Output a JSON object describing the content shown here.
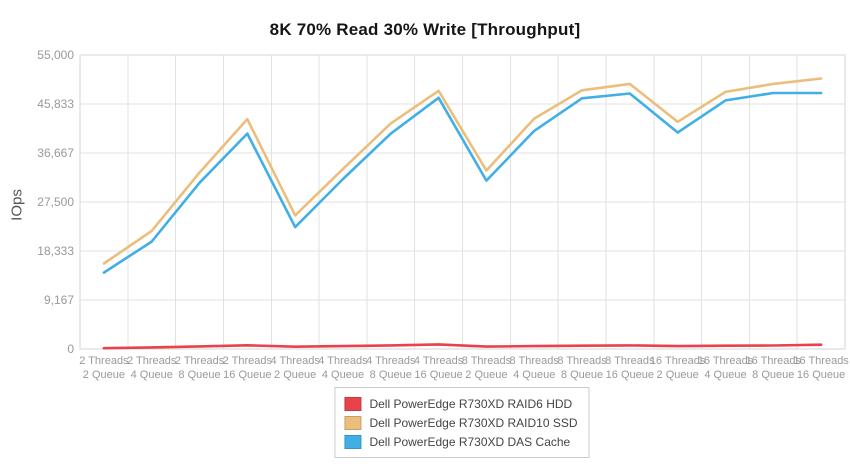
{
  "page": {
    "background": "#ffffff"
  },
  "chart_data": {
    "type": "line",
    "title": "8K 70% Read 30% Write [Throughput]",
    "xlabel": "",
    "ylabel": "IOps",
    "ylim": [
      0,
      55000
    ],
    "y_ticks": [
      0,
      9167,
      18333,
      27500,
      36667,
      45833,
      55000
    ],
    "y_tick_labels": [
      "0",
      "9,167",
      "18,333",
      "27,500",
      "36,667",
      "45,833",
      "55,000"
    ],
    "grid": true,
    "legend_position": "bottom-center",
    "categories": [
      [
        "2 Threads",
        "2 Queue"
      ],
      [
        "2 Threads",
        "4 Queue"
      ],
      [
        "2 Threads",
        "8 Queue"
      ],
      [
        "2 Threads",
        "16 Queue"
      ],
      [
        "4 Threads",
        "2 Queue"
      ],
      [
        "4 Threads",
        "4 Queue"
      ],
      [
        "4 Threads",
        "8 Queue"
      ],
      [
        "4 Threads",
        "16 Queue"
      ],
      [
        "8 Threads",
        "2 Queue"
      ],
      [
        "8 Threads",
        "4 Queue"
      ],
      [
        "8 Threads",
        "8 Queue"
      ],
      [
        "8 Threads",
        "16 Queue"
      ],
      [
        "16 Threads",
        "2 Queue"
      ],
      [
        "16 Threads",
        "4 Queue"
      ],
      [
        "16 Threads",
        "8 Queue"
      ],
      [
        "16 Threads",
        "16 Queue"
      ]
    ],
    "series": [
      {
        "name": "Dell PowerEdge R730XD RAID6 HDD",
        "color": "#e8434b",
        "values": [
          150,
          300,
          480,
          700,
          430,
          550,
          680,
          860,
          450,
          550,
          620,
          680,
          550,
          610,
          660,
          800
        ]
      },
      {
        "name": "Dell PowerEdge R730XD RAID10 SSD",
        "color": "#ecbe7d",
        "values": [
          16000,
          22100,
          33000,
          43000,
          25000,
          33700,
          42200,
          48300,
          33400,
          43100,
          48400,
          49600,
          42500,
          48100,
          49600,
          50600
        ]
      },
      {
        "name": "Dell PowerEdge R730XD DAS Cache",
        "color": "#41afe6",
        "values": [
          14300,
          20100,
          31100,
          40300,
          22800,
          31800,
          40300,
          47000,
          31500,
          40800,
          46900,
          47800,
          40500,
          46500,
          47900,
          47900
        ]
      }
    ],
    "styles": {
      "grid_color": "#e2e2e2",
      "border_color": "#d6d6d6",
      "tick_text_color": "#999999",
      "title_color": "#151515",
      "axis_label_color": "#555555",
      "legend_text_color": "#444444",
      "legend_border_color": "#cccccc"
    }
  }
}
